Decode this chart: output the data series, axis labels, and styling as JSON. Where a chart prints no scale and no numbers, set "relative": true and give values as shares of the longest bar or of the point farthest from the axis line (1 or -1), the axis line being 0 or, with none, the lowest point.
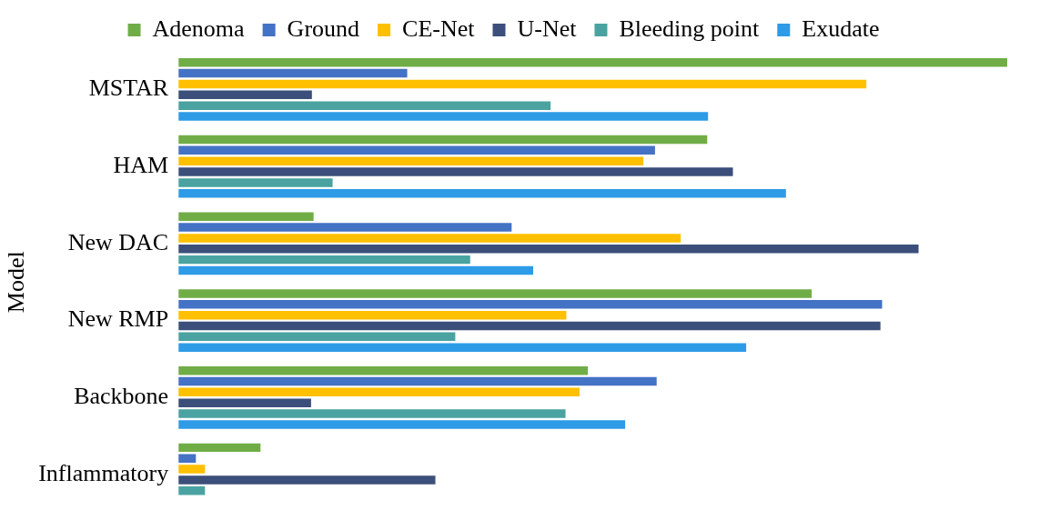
{
  "chart_data": {
    "type": "bar",
    "orientation": "horizontal",
    "relative": true,
    "ylabel": "Model",
    "legend": "top",
    "categories": [
      "MSTAR",
      "HAM",
      "New DAC",
      "New RMP",
      "Backbone",
      "Inflammatory"
    ],
    "series": [
      {
        "name": "Adenoma",
        "color": "#70ad47",
        "values": [
          1,
          0.638,
          0.163,
          0.764,
          0.494,
          0.099
        ]
      },
      {
        "name": "Ground",
        "color": "#4472c4",
        "values": [
          0.276,
          0.575,
          0.402,
          0.849,
          0.577,
          0.021
        ]
      },
      {
        "name": "CE-Net",
        "color": "#ffc000",
        "values": [
          0.83,
          0.561,
          0.606,
          0.468,
          0.484,
          0.032
        ]
      },
      {
        "name": "U-Net",
        "color": "#3b4f7a",
        "values": [
          0.161,
          0.669,
          0.893,
          0.847,
          0.16,
          0.31
        ]
      },
      {
        "name": "Bleeding point",
        "color": "#4aa3a0",
        "values": [
          0.449,
          0.186,
          0.352,
          0.334,
          0.467,
          0.032
        ]
      },
      {
        "name": "Exudate",
        "color": "#2e9be6",
        "values": [
          0.639,
          0.733,
          0.428,
          0.685,
          0.539,
          null
        ]
      }
    ]
  }
}
